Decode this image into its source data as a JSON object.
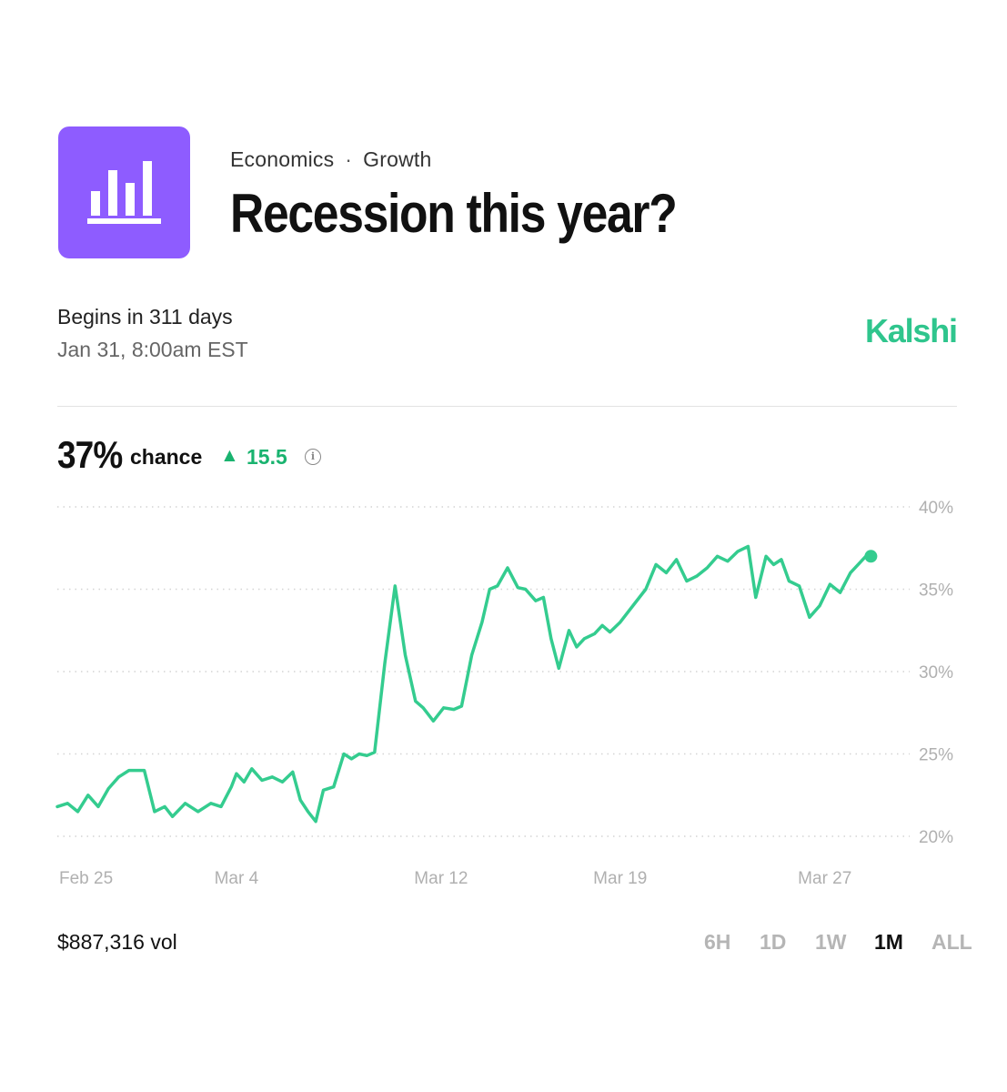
{
  "header": {
    "category": "Economics",
    "separator": "·",
    "subcategory": "Growth",
    "title": "Recession this year?",
    "icon": "bar-chart-icon",
    "icon_color": "#8e5cff"
  },
  "schedule": {
    "begins": "Begins in 311 days",
    "date": "Jan 31, 8:00am EST"
  },
  "brand": {
    "name": "Kalshi",
    "color": "#2fc58d"
  },
  "summary": {
    "chance_value": "37%",
    "chance_label": "chance",
    "delta_icon": "▲",
    "delta_value": "15.5",
    "delta_color": "#19b36f",
    "info_icon": "i"
  },
  "footer": {
    "volume": "$887,316 vol",
    "ranges": [
      "6H",
      "1D",
      "1W",
      "1M",
      "ALL"
    ],
    "active_range": "1M"
  },
  "chart_data": {
    "type": "line",
    "title": "",
    "xlabel": "",
    "ylabel": "",
    "x_tick_labels": [
      "Feb 25",
      "Mar 4",
      "Mar 12",
      "Mar 19",
      "Mar 27"
    ],
    "x_tick_days": [
      0,
      7,
      15,
      22,
      30
    ],
    "y_tick_labels": [
      "40%",
      "35%",
      "30%",
      "25%",
      "20%"
    ],
    "y_ticks": [
      40,
      35,
      30,
      25,
      20
    ],
    "ylim": [
      20,
      40
    ],
    "grid": "horizontal dotted",
    "line_color": "#34cc8f",
    "series": [
      {
        "x": [
          0,
          0.4,
          0.8,
          1.2,
          1.6,
          2.0,
          2.4,
          2.8,
          3.0,
          3.4,
          3.8,
          4.2,
          4.5,
          5.0,
          5.5,
          6.0,
          6.4,
          6.8,
          7.0,
          7.3,
          7.6,
          8.0,
          8.4,
          8.8,
          9.2,
          9.5,
          9.8,
          10.1,
          10.4,
          10.8,
          11.2,
          11.5,
          11.8,
          12.1,
          12.4,
          12.8,
          13.2,
          13.6,
          14.0,
          14.3,
          14.7,
          15.1,
          15.5,
          15.8,
          16.2,
          16.6,
          16.9,
          17.2,
          17.6,
          18.0,
          18.3,
          18.7,
          19.0,
          19.3,
          19.6,
          20.0,
          20.3,
          20.6,
          21.0,
          21.3,
          21.6,
          22.0,
          22.3,
          22.6,
          23.0,
          23.4,
          23.8,
          24.2,
          24.6,
          25.0,
          25.4,
          25.8,
          26.2,
          26.6,
          27.0,
          27.3,
          27.7,
          28.0,
          28.3,
          28.6,
          29.0,
          29.4,
          29.8,
          30.2,
          30.6,
          31.0,
          31.3,
          31.6,
          31.8
        ],
        "values": [
          21.8,
          22.0,
          21.5,
          22.5,
          21.8,
          22.9,
          23.6,
          24.0,
          24.0,
          24.0,
          21.5,
          21.8,
          21.2,
          22.0,
          21.5,
          22.0,
          21.8,
          23.0,
          23.8,
          23.3,
          24.1,
          23.4,
          23.6,
          23.3,
          23.9,
          22.2,
          21.5,
          20.9,
          22.8,
          23.0,
          25.0,
          24.7,
          25.0,
          24.9,
          25.1,
          30.5,
          35.2,
          31.0,
          28.2,
          27.8,
          27.0,
          27.8,
          27.7,
          27.9,
          31.0,
          33.0,
          35.0,
          35.2,
          36.3,
          35.1,
          35.0,
          34.3,
          34.5,
          32.0,
          30.2,
          32.5,
          31.5,
          32.0,
          32.3,
          32.8,
          32.4,
          33.0,
          33.6,
          34.2,
          35.0,
          36.5,
          36.0,
          36.8,
          35.5,
          35.8,
          36.3,
          37.0,
          36.7,
          37.3,
          37.6,
          34.5,
          37.0,
          36.5,
          36.8,
          35.5,
          35.2,
          33.3,
          34.0,
          35.3,
          34.8,
          36.0,
          36.5,
          37.0,
          37.0
        ]
      }
    ]
  }
}
